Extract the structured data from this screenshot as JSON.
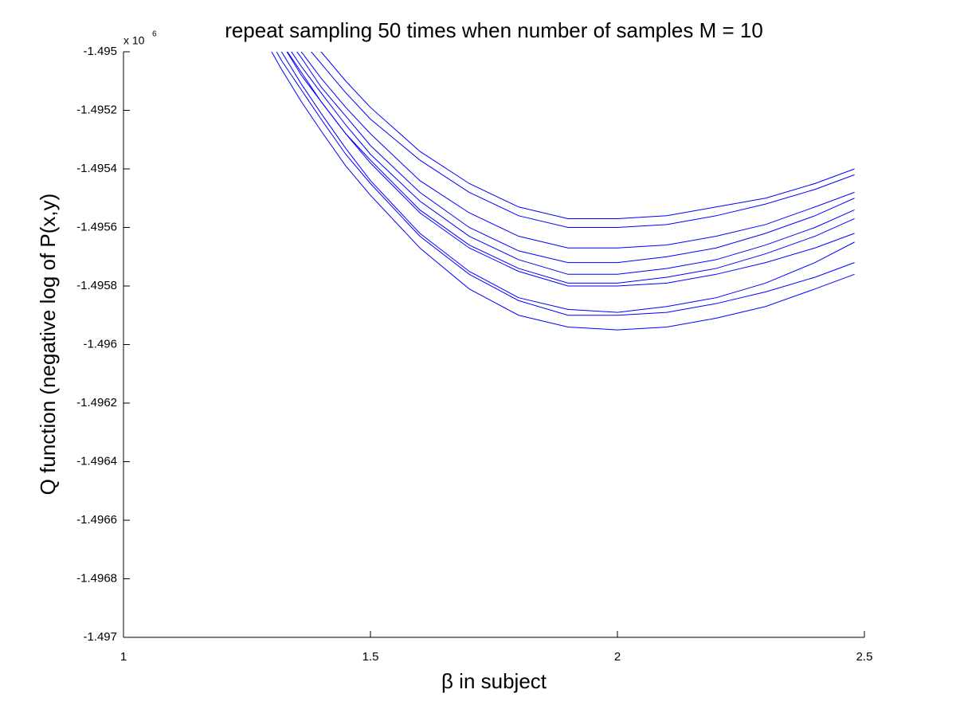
{
  "chart_data": {
    "type": "line",
    "title": "repeat sampling 50 times when number of samples M = 10",
    "x_label": "β in subject",
    "y_label": "Q function (negative log of P(x,y)",
    "y_exponent_label": {
      "base": "x 10",
      "exponent": "6"
    },
    "color": "#0000ff",
    "xlim": [
      1,
      2.5
    ],
    "xticks": [
      1,
      1.5,
      2,
      2.5
    ],
    "ylim": [
      -1.497,
      -1.495
    ],
    "yticks": [
      -1.497,
      -1.4968,
      -1.4966,
      -1.4964,
      -1.4962,
      -1.496,
      -1.4958,
      -1.4956,
      -1.4954,
      -1.4952,
      -1.495
    ],
    "x": [
      1.28,
      1.32,
      1.36,
      1.4,
      1.45,
      1.5,
      1.6,
      1.7,
      1.8,
      1.9,
      2.0,
      2.1,
      2.2,
      2.3,
      2.4,
      2.48
    ],
    "series": [
      {
        "values": [
          -1.49494,
          -1.49506,
          -1.49517,
          -1.49527,
          -1.49539,
          -1.49549,
          -1.49567,
          -1.49581,
          -1.4959,
          -1.49594,
          -1.49595,
          -1.49594,
          -1.49591,
          -1.49587,
          -1.49581,
          -1.49576
        ]
      },
      {
        "values": [
          -1.49491,
          -1.49503,
          -1.49513,
          -1.49523,
          -1.49535,
          -1.49545,
          -1.49563,
          -1.49576,
          -1.49585,
          -1.4959,
          -1.4959,
          -1.49589,
          -1.49586,
          -1.49582,
          -1.49577,
          -1.49572
        ]
      },
      {
        "values": [
          -1.49488,
          -1.495,
          -1.49511,
          -1.49521,
          -1.49533,
          -1.49544,
          -1.49562,
          -1.49575,
          -1.49584,
          -1.49588,
          -1.49589,
          -1.49587,
          -1.49584,
          -1.49579,
          -1.49572,
          -1.49565
        ]
      },
      {
        "values": [
          null,
          -1.49497,
          -1.49508,
          -1.49517,
          -1.49528,
          -1.49538,
          -1.49555,
          -1.49567,
          -1.49575,
          -1.4958,
          -1.4958,
          -1.49579,
          -1.49576,
          -1.49572,
          -1.49567,
          -1.49562
        ]
      },
      {
        "values": [
          null,
          -1.49497,
          -1.49507,
          -1.49517,
          -1.49528,
          -1.49537,
          -1.49554,
          -1.49566,
          -1.49574,
          -1.49579,
          -1.49579,
          -1.49577,
          -1.49574,
          -1.49569,
          -1.49563,
          -1.49557
        ]
      },
      {
        "values": [
          null,
          -1.49495,
          -1.49505,
          -1.49514,
          -1.49525,
          -1.49535,
          -1.49551,
          -1.49563,
          -1.49571,
          -1.49576,
          -1.49576,
          -1.49574,
          -1.49571,
          -1.49566,
          -1.4956,
          -1.49554
        ]
      },
      {
        "values": [
          null,
          -1.49493,
          -1.49502,
          -1.49512,
          -1.49522,
          -1.49532,
          -1.49548,
          -1.4956,
          -1.49568,
          -1.49572,
          -1.49572,
          -1.4957,
          -1.49567,
          -1.49562,
          -1.49556,
          -1.4955
        ]
      },
      {
        "values": [
          null,
          -1.49491,
          -1.495,
          -1.49509,
          -1.49519,
          -1.49528,
          -1.49544,
          -1.49555,
          -1.49563,
          -1.49567,
          -1.49567,
          -1.49566,
          -1.49563,
          -1.49559,
          -1.49553,
          -1.49548
        ]
      },
      {
        "values": [
          null,
          null,
          -1.49496,
          -1.49504,
          -1.49514,
          -1.49523,
          -1.49537,
          -1.49548,
          -1.49556,
          -1.4956,
          -1.4956,
          -1.49559,
          -1.49556,
          -1.49552,
          -1.49547,
          -1.49542
        ]
      },
      {
        "values": [
          null,
          null,
          -1.49492,
          -1.495,
          -1.4951,
          -1.49519,
          -1.49534,
          -1.49545,
          -1.49553,
          -1.49557,
          -1.49557,
          -1.49556,
          -1.49553,
          -1.4955,
          -1.49545,
          -1.4954
        ]
      }
    ]
  }
}
